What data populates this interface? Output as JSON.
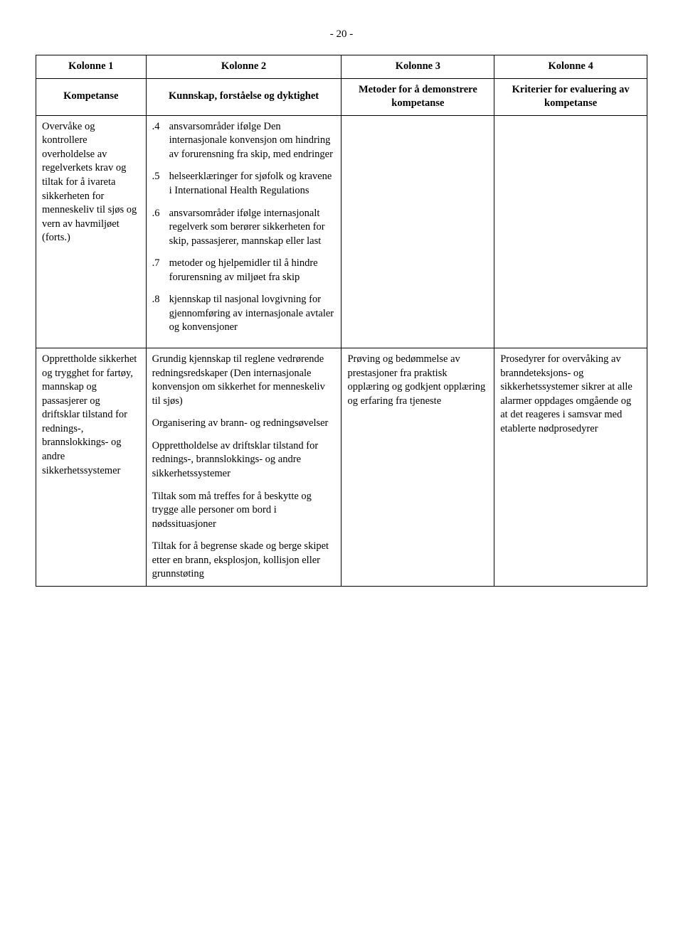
{
  "page_number": "- 20 -",
  "table": {
    "headers": [
      "Kolonne 1",
      "Kolonne 2",
      "Kolonne 3",
      "Kolonne 4"
    ],
    "subheaders": [
      "Kompetanse",
      "Kunnskap, forståelse og dyktighet",
      "Metoder for å demonstrere kompetanse",
      "Kriterier for evaluering av kompetanse"
    ],
    "row1": {
      "c1": "Overvåke og kontrollere overholdelse av regelverkets krav og tiltak for å ivareta sikkerheten for menneskeliv til sjøs og vern av havmiljøet (forts.)",
      "c2_items": [
        {
          "n": ".4",
          "t": "ansvarsområder ifølge Den internasjonale konvensjon om hindring av forurensning fra skip, med endringer"
        },
        {
          "n": ".5",
          "t": "helseerklæringer for sjøfolk og kravene i International Health Regulations"
        },
        {
          "n": ".6",
          "t": "ansvarsområder ifølge internasjonalt regelverk som berører sikkerheten for skip, passasjerer, mannskap eller last"
        },
        {
          "n": ".7",
          "t": "metoder og hjelpemidler til å hindre forurensning av miljøet fra skip"
        },
        {
          "n": ".8",
          "t": "kjennskap til nasjonal lovgivning for gjennomføring av internasjonale avtaler og konvensjoner"
        }
      ]
    },
    "row2": {
      "c1": "Opprettholde sikkerhet og trygghet for fartøy, mannskap og passasjerer og driftsklar tilstand for rednings-, brannslokkings- og andre sikkerhetssystemer",
      "c2_paras": [
        "Grundig kjennskap til reglene vedrørende redningsredskaper (Den internasjonale konvensjon om sikkerhet for menneskeliv til sjøs)",
        "Organisering av brann- og redningsøvelser",
        "Opprettholdelse av driftsklar tilstand for rednings-, brannslokkings- og andre sikkerhetssystemer",
        "Tiltak som må treffes for å beskytte og trygge alle personer om bord i nødssituasjoner",
        "Tiltak for å begrense skade og berge skipet etter en brann, eksplosjon, kollisjon eller grunnstøting"
      ],
      "c3": "Prøving og bedømmelse av prestasjoner fra praktisk opplæring og godkjent opplæring og erfaring fra tjeneste",
      "c4": "Prosedyrer for overvåking av branndeteksjons- og sikkerhetssystemer sikrer at alle alarmer oppdages omgående og at det reageres i samsvar med etablerte nødprosedyrer"
    }
  }
}
